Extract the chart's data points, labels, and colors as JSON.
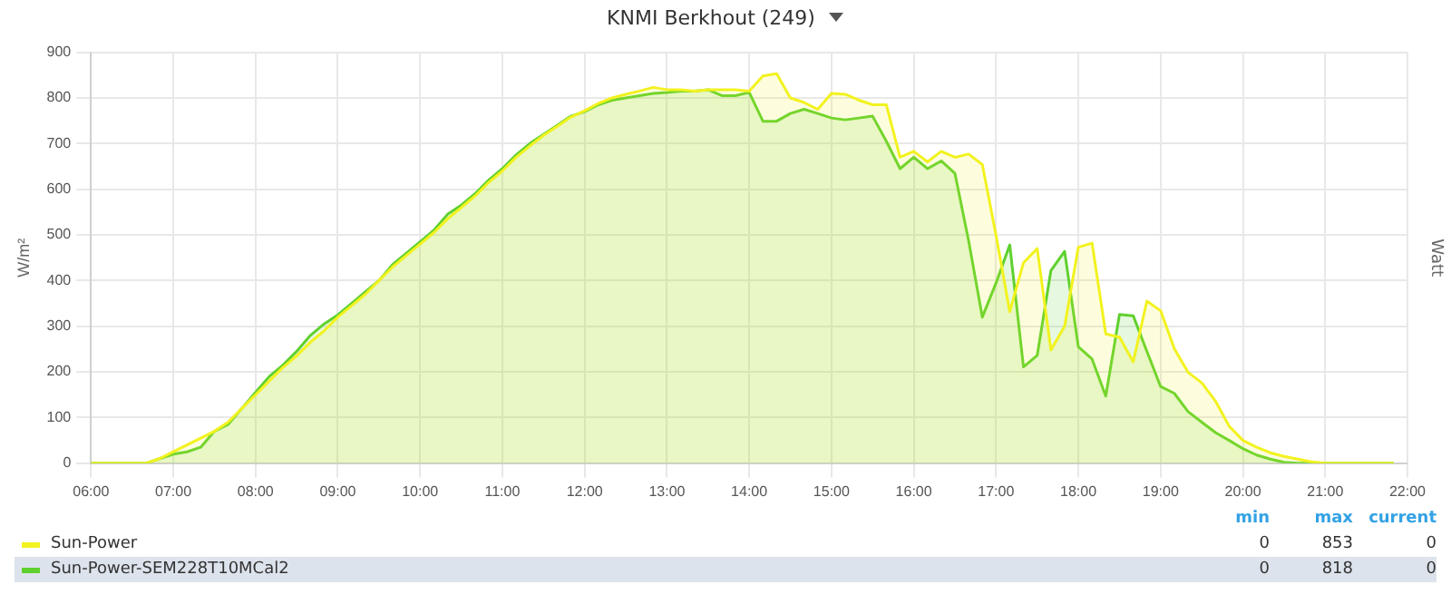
{
  "chart_data": {
    "type": "area",
    "title": "KNMI Berkhout (249)",
    "ylabel": "W/m²",
    "y2label": "Watt",
    "x": [
      6,
      6.1667,
      6.3333,
      6.5,
      6.6667,
      6.8333,
      7,
      7.1667,
      7.3333,
      7.5,
      7.6667,
      7.8333,
      8,
      8.1667,
      8.3333,
      8.5,
      8.6667,
      8.8333,
      9,
      9.1667,
      9.3333,
      9.5,
      9.6667,
      9.8333,
      10,
      10.1667,
      10.3333,
      10.5,
      10.6667,
      10.8333,
      11,
      11.1667,
      11.3333,
      11.5,
      11.6667,
      11.8333,
      12,
      12.1667,
      12.3333,
      12.5,
      12.6667,
      12.8333,
      13,
      13.1667,
      13.3333,
      13.5,
      13.6667,
      13.8333,
      14,
      14.1667,
      14.3333,
      14.5,
      14.6667,
      14.8333,
      15,
      15.1667,
      15.3333,
      15.5,
      15.6667,
      15.8333,
      16,
      16.1667,
      16.3333,
      16.5,
      16.6667,
      16.8333,
      17,
      17.1667,
      17.3333,
      17.5,
      17.6667,
      17.8333,
      18,
      18.1667,
      18.3333,
      18.5,
      18.6667,
      18.8333,
      19,
      19.1667,
      19.3333,
      19.5,
      19.6667,
      19.8333,
      20,
      20.1667,
      20.3333,
      20.5,
      20.6667,
      20.8333,
      21,
      21.1667,
      21.3333,
      21.5,
      21.6667,
      21.8333
    ],
    "series": [
      {
        "name": "Sun-Power",
        "color": "#f2f21f",
        "values": [
          0,
          0,
          0,
          0,
          0,
          10,
          25,
          40,
          55,
          70,
          90,
          120,
          150,
          180,
          210,
          235,
          265,
          290,
          320,
          345,
          370,
          400,
          430,
          455,
          480,
          505,
          535,
          560,
          585,
          615,
          640,
          670,
          695,
          718,
          738,
          758,
          772,
          788,
          800,
          808,
          815,
          823,
          818,
          818,
          815,
          818,
          818,
          818,
          815,
          848,
          853,
          800,
          790,
          775,
          810,
          808,
          795,
          785,
          785,
          670,
          683,
          660,
          683,
          670,
          677,
          654,
          499,
          332,
          439,
          470,
          248,
          300,
          473,
          482,
          283,
          276,
          222,
          355,
          334,
          251,
          199,
          176,
          136,
          81,
          50,
          35,
          23,
          15,
          9,
          3,
          0,
          0,
          0,
          0,
          0,
          0
        ]
      },
      {
        "name": "Sun-Power-SEM228T10MCal2",
        "color": "#5fd12e",
        "values": [
          0,
          0,
          0,
          0,
          0,
          10,
          20,
          25,
          35,
          70,
          85,
          120,
          155,
          190,
          215,
          245,
          280,
          305,
          325,
          350,
          375,
          400,
          435,
          460,
          485,
          510,
          545,
          565,
          590,
          620,
          645,
          675,
          700,
          720,
          740,
          760,
          770,
          785,
          795,
          800,
          805,
          810,
          812,
          815,
          815,
          818,
          805,
          805,
          812,
          749,
          749,
          766,
          775,
          766,
          756,
          752,
          756,
          760,
          705,
          645,
          670,
          645,
          662,
          635,
          487,
          320,
          395,
          478,
          211,
          236,
          422,
          464,
          255,
          228,
          147,
          326,
          323,
          245,
          168,
          153,
          113,
          90,
          67,
          50,
          32,
          18,
          9,
          2,
          0,
          0,
          0,
          0,
          0,
          0,
          0,
          0
        ]
      }
    ],
    "xlim": [
      6,
      22
    ],
    "xticks": [
      {
        "value": 6,
        "label": "06:00"
      },
      {
        "value": 7,
        "label": "07:00"
      },
      {
        "value": 8,
        "label": "08:00"
      },
      {
        "value": 9,
        "label": "09:00"
      },
      {
        "value": 10,
        "label": "10:00"
      },
      {
        "value": 11,
        "label": "11:00"
      },
      {
        "value": 12,
        "label": "12:00"
      },
      {
        "value": 13,
        "label": "13:00"
      },
      {
        "value": 14,
        "label": "14:00"
      },
      {
        "value": 15,
        "label": "15:00"
      },
      {
        "value": 16,
        "label": "16:00"
      },
      {
        "value": 17,
        "label": "17:00"
      },
      {
        "value": 18,
        "label": "18:00"
      },
      {
        "value": 19,
        "label": "19:00"
      },
      {
        "value": 20,
        "label": "20:00"
      },
      {
        "value": 21,
        "label": "21:00"
      },
      {
        "value": 22,
        "label": "22:00"
      }
    ],
    "ylim": [
      0,
      900
    ],
    "yticks": [
      0,
      100,
      200,
      300,
      400,
      500,
      600,
      700,
      800,
      900
    ],
    "grid": true,
    "legend": "bottom",
    "marker": "none",
    "line_style": "solid",
    "annotations": [
      "min",
      "max",
      "current",
      "0",
      "853",
      "0",
      "0",
      "818",
      "0"
    ]
  }
}
